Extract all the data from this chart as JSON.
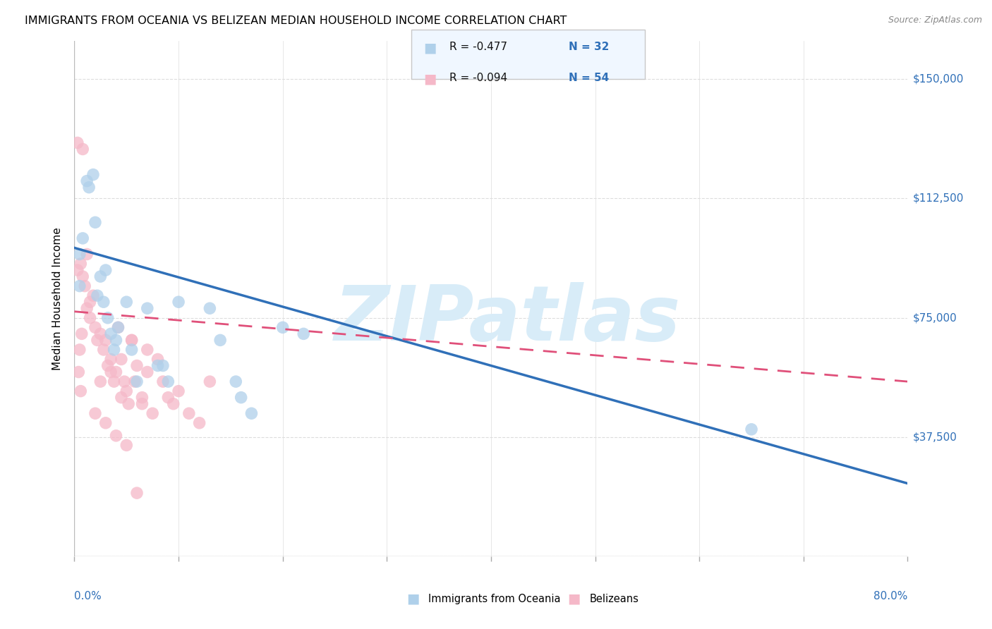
{
  "title": "IMMIGRANTS FROM OCEANIA VS BELIZEAN MEDIAN HOUSEHOLD INCOME CORRELATION CHART",
  "source": "Source: ZipAtlas.com",
  "ylabel": "Median Household Income",
  "yticks": [
    0,
    37500,
    75000,
    112500,
    150000
  ],
  "xlim": [
    0.0,
    0.8
  ],
  "ylim": [
    0,
    162000
  ],
  "legend_r1": "R = -0.477",
  "legend_n1": "N = 32",
  "legend_r2": "R = -0.094",
  "legend_n2": "N = 54",
  "color_blue": "#afd0ea",
  "color_blue_line": "#3070b8",
  "color_pink": "#f5b8c8",
  "color_pink_line": "#e0507a",
  "color_axis": "#3070b8",
  "watermark": "ZIPatlas",
  "watermark_color": "#d8ecf8",
  "blue_scatter_x": [
    0.005,
    0.008,
    0.014,
    0.02,
    0.022,
    0.025,
    0.028,
    0.03,
    0.032,
    0.038,
    0.04,
    0.05,
    0.055,
    0.06,
    0.07,
    0.085,
    0.09,
    0.1,
    0.13,
    0.14,
    0.155,
    0.17,
    0.2,
    0.22,
    0.65,
    0.005,
    0.012,
    0.018,
    0.035,
    0.042,
    0.08,
    0.16
  ],
  "blue_scatter_y": [
    95000,
    100000,
    116000,
    105000,
    82000,
    88000,
    80000,
    90000,
    75000,
    65000,
    68000,
    80000,
    65000,
    55000,
    78000,
    60000,
    55000,
    80000,
    78000,
    68000,
    55000,
    45000,
    72000,
    70000,
    40000,
    85000,
    118000,
    120000,
    70000,
    72000,
    60000,
    50000
  ],
  "pink_scatter_x": [
    0.003,
    0.008,
    0.003,
    0.006,
    0.01,
    0.012,
    0.015,
    0.018,
    0.02,
    0.022,
    0.025,
    0.028,
    0.03,
    0.032,
    0.035,
    0.038,
    0.04,
    0.042,
    0.045,
    0.048,
    0.05,
    0.052,
    0.055,
    0.058,
    0.06,
    0.065,
    0.07,
    0.075,
    0.08,
    0.085,
    0.09,
    0.095,
    0.1,
    0.11,
    0.12,
    0.13,
    0.005,
    0.007,
    0.015,
    0.025,
    0.035,
    0.045,
    0.055,
    0.065,
    0.004,
    0.006,
    0.02,
    0.03,
    0.04,
    0.05,
    0.06,
    0.008,
    0.012,
    0.07
  ],
  "pink_scatter_y": [
    130000,
    128000,
    90000,
    92000,
    85000,
    78000,
    75000,
    82000,
    72000,
    68000,
    70000,
    65000,
    68000,
    60000,
    62000,
    55000,
    58000,
    72000,
    50000,
    55000,
    52000,
    48000,
    68000,
    55000,
    60000,
    50000,
    58000,
    45000,
    62000,
    55000,
    50000,
    48000,
    52000,
    45000,
    42000,
    55000,
    65000,
    70000,
    80000,
    55000,
    58000,
    62000,
    68000,
    48000,
    58000,
    52000,
    45000,
    42000,
    38000,
    35000,
    20000,
    88000,
    95000,
    65000
  ],
  "blue_line_x": [
    0.0,
    0.8
  ],
  "blue_line_y": [
    97000,
    23000
  ],
  "pink_line_x": [
    0.0,
    0.8
  ],
  "pink_line_y": [
    77000,
    55000
  ],
  "grid_color": "#dddddd",
  "title_fontsize": 11.5,
  "legend_box_color": "#f0f7ff",
  "legend_border_color": "#c8c8c8"
}
